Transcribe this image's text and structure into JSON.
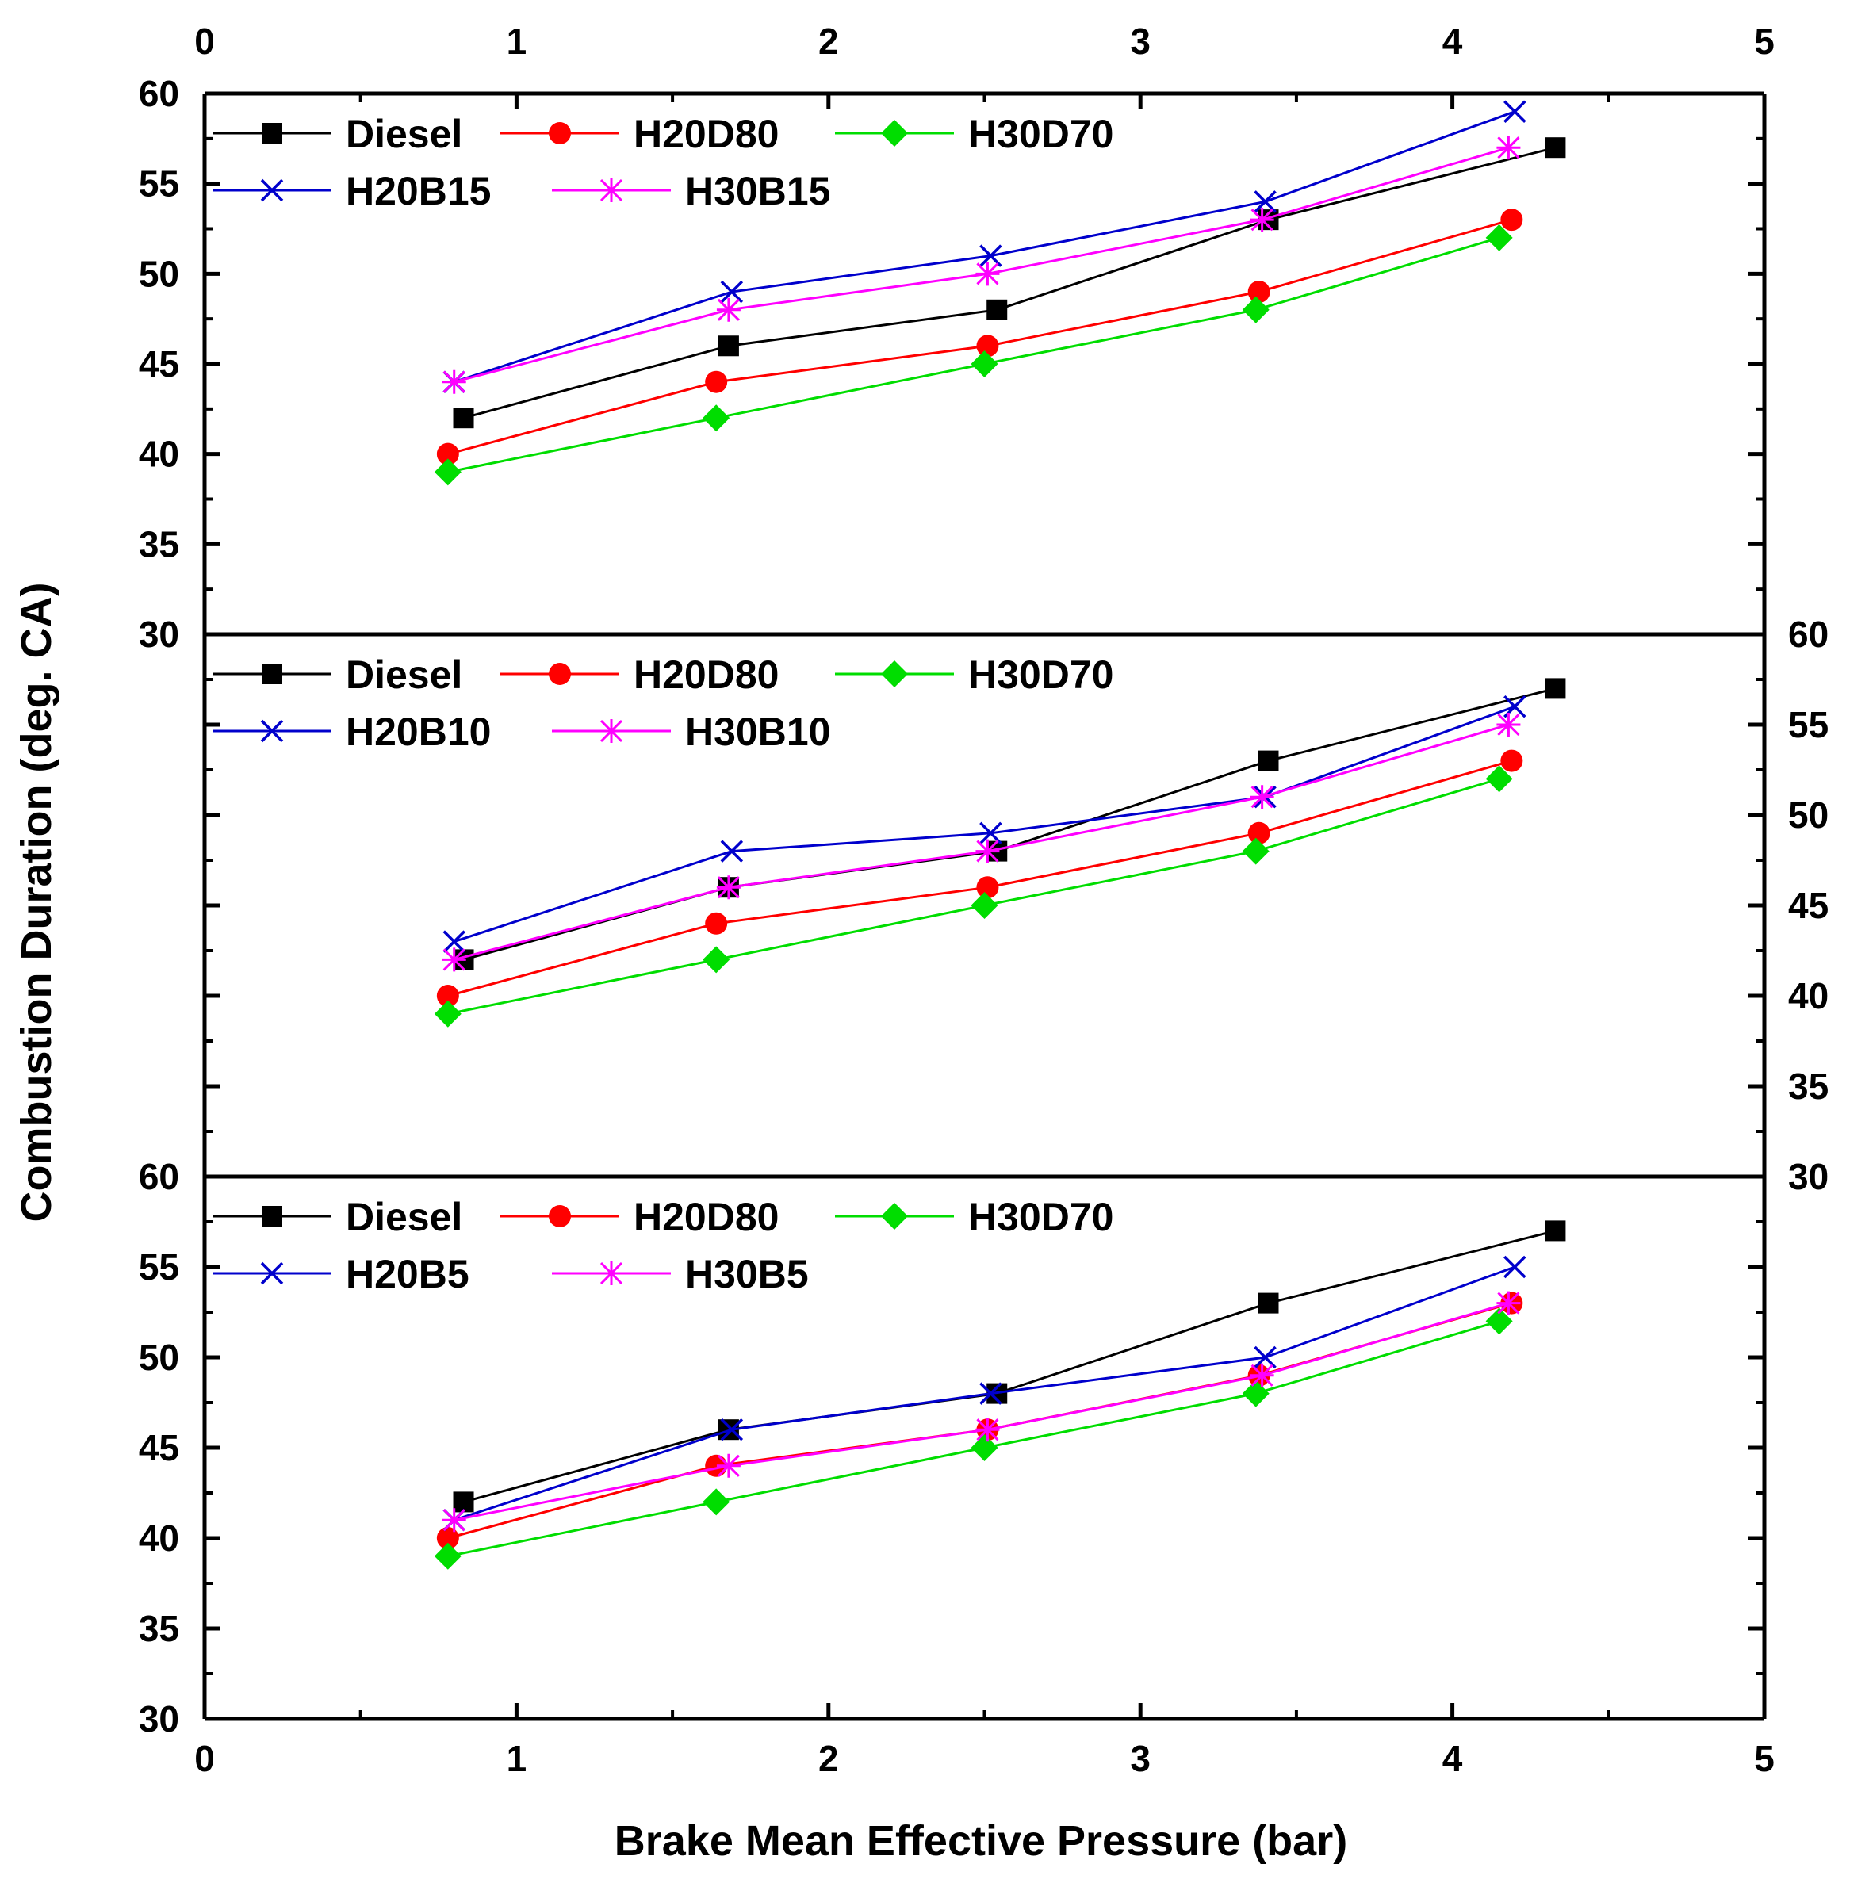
{
  "chart_data": {
    "type": "line",
    "xlabel": "Brake Mean Effective Pressure (bar)",
    "ylabel": "Combustion Duration (deg. CA)",
    "xlim": [
      0,
      5
    ],
    "ylim": [
      30,
      60
    ],
    "x_ticks": [
      "0",
      "1",
      "2",
      "3",
      "4",
      "5"
    ],
    "y_ticks": [
      "30",
      "35",
      "40",
      "45",
      "50",
      "55",
      "60"
    ],
    "colors": {
      "Diesel": "#000000",
      "H20D80": "#ff0000",
      "H30D70": "#00dd00",
      "H20B": "#0000cc",
      "H30B": "#ff00ff"
    },
    "panels": [
      {
        "name": "top",
        "y_axis_side": "left",
        "legend": [
          [
            "Diesel",
            "H20D80",
            "H30D70"
          ],
          [
            "H20B15",
            "H30B15"
          ]
        ],
        "series": [
          {
            "name": "Diesel",
            "marker": "square",
            "x": [
              0.83,
              1.68,
              2.54,
              3.41,
              4.33
            ],
            "y": [
              42,
              46,
              48,
              53,
              57
            ]
          },
          {
            "name": "H20D80",
            "marker": "circle",
            "x": [
              0.78,
              1.64,
              2.51,
              3.38,
              4.19
            ],
            "y": [
              40,
              44,
              46,
              49,
              53
            ]
          },
          {
            "name": "H30D70",
            "marker": "diamond",
            "x": [
              0.78,
              1.64,
              2.5,
              3.37,
              4.15
            ],
            "y": [
              39,
              42,
              45,
              48,
              52
            ]
          },
          {
            "name": "H20B15",
            "marker": "x",
            "x": [
              0.8,
              1.69,
              2.52,
              3.4,
              4.2
            ],
            "y": [
              44,
              49,
              51,
              54,
              59
            ]
          },
          {
            "name": "H30B15",
            "marker": "star",
            "x": [
              0.8,
              1.68,
              2.51,
              3.39,
              4.18
            ],
            "y": [
              44,
              48,
              50,
              53,
              57
            ]
          }
        ]
      },
      {
        "name": "middle",
        "y_axis_side": "right",
        "legend": [
          [
            "Diesel",
            "H20D80",
            "H30D70"
          ],
          [
            "H20B10",
            "H30B10"
          ]
        ],
        "series": [
          {
            "name": "Diesel",
            "marker": "square",
            "x": [
              0.83,
              1.68,
              2.54,
              3.41,
              4.33
            ],
            "y": [
              42,
              46,
              48,
              53,
              57
            ]
          },
          {
            "name": "H20D80",
            "marker": "circle",
            "x": [
              0.78,
              1.64,
              2.51,
              3.38,
              4.19
            ],
            "y": [
              40,
              44,
              46,
              49,
              53
            ]
          },
          {
            "name": "H30D70",
            "marker": "diamond",
            "x": [
              0.78,
              1.64,
              2.5,
              3.37,
              4.15
            ],
            "y": [
              39,
              42,
              45,
              48,
              52
            ]
          },
          {
            "name": "H20B10",
            "marker": "x",
            "x": [
              0.8,
              1.69,
              2.52,
              3.4,
              4.2
            ],
            "y": [
              43,
              48,
              49,
              51,
              56
            ]
          },
          {
            "name": "H30B10",
            "marker": "star",
            "x": [
              0.8,
              1.68,
              2.51,
              3.39,
              4.18
            ],
            "y": [
              42,
              46,
              48,
              51,
              55
            ]
          }
        ]
      },
      {
        "name": "bottom",
        "y_axis_side": "left",
        "legend": [
          [
            "Diesel",
            "H20D80",
            "H30D70"
          ],
          [
            "H20B5",
            "H30B5"
          ]
        ],
        "series": [
          {
            "name": "Diesel",
            "marker": "square",
            "x": [
              0.83,
              1.68,
              2.54,
              3.41,
              4.33
            ],
            "y": [
              42,
              46,
              48,
              53,
              57
            ]
          },
          {
            "name": "H20D80",
            "marker": "circle",
            "x": [
              0.78,
              1.64,
              2.51,
              3.38,
              4.19
            ],
            "y": [
              40,
              44,
              46,
              49,
              53
            ]
          },
          {
            "name": "H30D70",
            "marker": "diamond",
            "x": [
              0.78,
              1.64,
              2.5,
              3.37,
              4.15
            ],
            "y": [
              39,
              42,
              45,
              48,
              52
            ]
          },
          {
            "name": "H20B5",
            "marker": "x",
            "x": [
              0.8,
              1.69,
              2.52,
              3.4,
              4.2
            ],
            "y": [
              41,
              46,
              48,
              50,
              55
            ]
          },
          {
            "name": "H30B5",
            "marker": "star",
            "x": [
              0.8,
              1.68,
              2.51,
              3.39,
              4.18
            ],
            "y": [
              41,
              44,
              46,
              49,
              53
            ]
          }
        ]
      }
    ]
  }
}
